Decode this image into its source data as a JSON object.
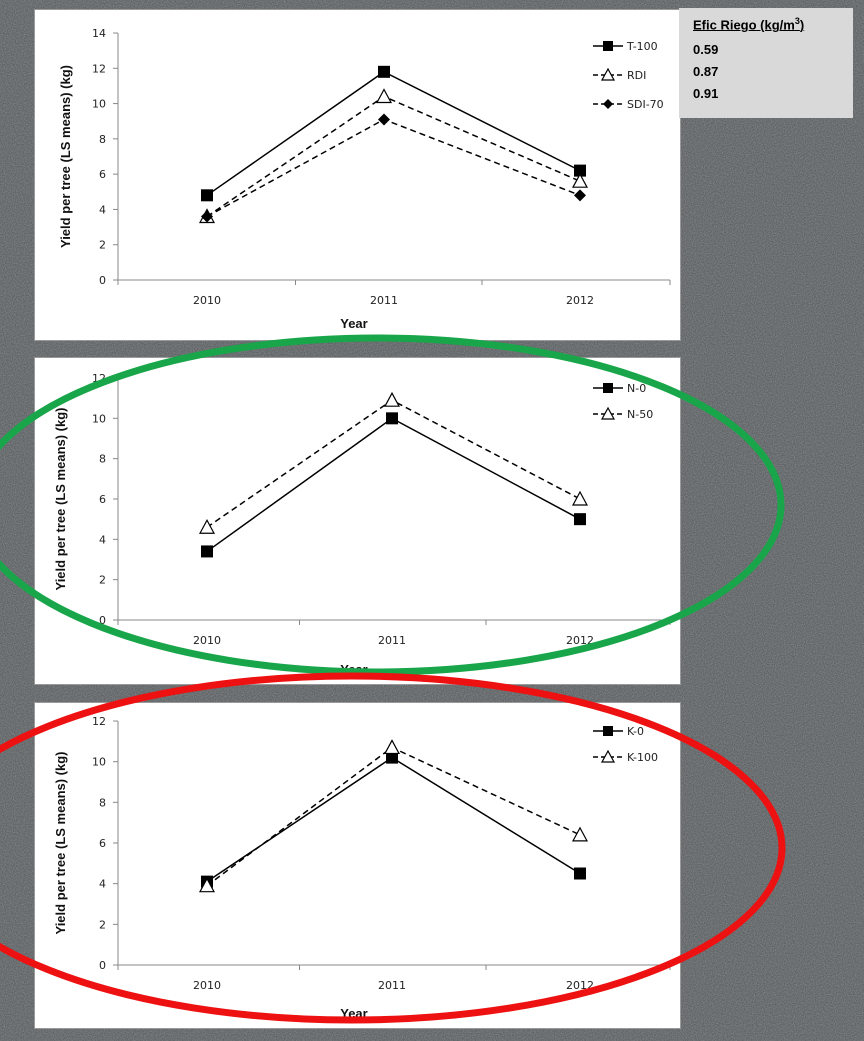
{
  "charts": [
    {
      "id": "irrigation",
      "ylabel": "Yield per tree (LS means) (kg)",
      "xlabel": "Year",
      "yticks": [
        "0",
        "2",
        "4",
        "6",
        "8",
        "10",
        "12",
        "14"
      ],
      "xticks": [
        "2010",
        "2011",
        "2012"
      ],
      "legend": [
        "T-100",
        "RDI",
        "SDI-70"
      ]
    },
    {
      "id": "nitrogen",
      "ylabel": "Yield per tree (LS means) (kg)",
      "xlabel": "Year",
      "yticks": [
        "0",
        "2",
        "4",
        "6",
        "8",
        "10",
        "12"
      ],
      "xticks": [
        "2010",
        "2011",
        "2012"
      ],
      "legend": [
        "N-0",
        "N-50"
      ]
    },
    {
      "id": "potassium",
      "ylabel": "Yield per tree (LS means) (kg)",
      "xlabel": "Year",
      "yticks": [
        "0",
        "2",
        "4",
        "6",
        "8",
        "10",
        "12"
      ],
      "xticks": [
        "2010",
        "2011",
        "2012"
      ],
      "legend": [
        "K-0",
        "K-100"
      ]
    }
  ],
  "efficiency_box": {
    "title_main": "Efic Riego (kg/m",
    "title_sup": "3",
    "title_end": ")",
    "values": [
      "0.59",
      "0.87",
      "0.91"
    ]
  },
  "highlight_colors": {
    "nitrogen": "#19a64a",
    "potassium": "#ee1111"
  },
  "chart_data": [
    {
      "type": "line",
      "categories": [
        "2010",
        "2011",
        "2012"
      ],
      "xlabel": "Year",
      "ylabel": "Yield per tree (LS means) (kg)",
      "ylim": [
        0,
        14
      ],
      "legend_position": "top-right",
      "grid": false,
      "series": [
        {
          "name": "T-100",
          "values": [
            4.8,
            11.8,
            6.2
          ],
          "marker": "square-filled",
          "dash": "solid"
        },
        {
          "name": "RDI",
          "values": [
            3.6,
            10.4,
            5.6
          ],
          "marker": "triangle-open",
          "dash": "dashed"
        },
        {
          "name": "SDI-70",
          "values": [
            3.6,
            9.1,
            4.8
          ],
          "marker": "diamond-filled",
          "dash": "dashed"
        }
      ]
    },
    {
      "type": "line",
      "categories": [
        "2010",
        "2011",
        "2012"
      ],
      "xlabel": "Year",
      "ylabel": "Yield per tree (LS means) (kg)",
      "ylim": [
        0,
        12
      ],
      "legend_position": "top-right",
      "grid": false,
      "series": [
        {
          "name": "N-0",
          "values": [
            3.4,
            10.0,
            5.0
          ],
          "marker": "square-filled",
          "dash": "solid"
        },
        {
          "name": "N-50",
          "values": [
            4.6,
            10.9,
            6.0
          ],
          "marker": "triangle-open",
          "dash": "dashed"
        }
      ]
    },
    {
      "type": "line",
      "categories": [
        "2010",
        "2011",
        "2012"
      ],
      "xlabel": "Year",
      "ylabel": "Yield per tree (LS means) (kg)",
      "ylim": [
        0,
        12
      ],
      "legend_position": "top-right",
      "grid": false,
      "series": [
        {
          "name": "K-0",
          "values": [
            4.1,
            10.2,
            4.5
          ],
          "marker": "square-filled",
          "dash": "solid"
        },
        {
          "name": "K-100",
          "values": [
            3.9,
            10.7,
            6.4
          ],
          "marker": "triangle-open",
          "dash": "dashed"
        }
      ]
    }
  ]
}
